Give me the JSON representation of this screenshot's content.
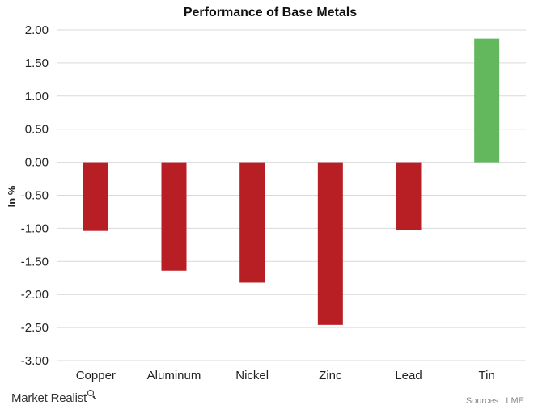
{
  "chart_data": {
    "type": "bar",
    "title": "Performance of Base Metals",
    "ylabel": "In %",
    "xlabel": "",
    "categories": [
      "Copper",
      "Aluminum",
      "Nickel",
      "Zinc",
      "Lead",
      "Tin"
    ],
    "values": [
      -1.04,
      -1.64,
      -1.82,
      -2.46,
      -1.03,
      1.87
    ],
    "ylim": [
      -3.0,
      2.0
    ],
    "yticks": [
      "2.00",
      "1.50",
      "1.00",
      "0.50",
      "0.00",
      "-0.50",
      "-1.00",
      "-1.50",
      "-2.00",
      "-2.50",
      "-3.00"
    ],
    "grid": true,
    "legend": "none",
    "colors": {
      "negative": "#b81f24",
      "positive": "#63b85e",
      "grid": "#d9d9d9"
    }
  },
  "footer": {
    "brand": "Market Realist",
    "brand_icon": "magnifier-icon",
    "source": "Sources : LME"
  }
}
